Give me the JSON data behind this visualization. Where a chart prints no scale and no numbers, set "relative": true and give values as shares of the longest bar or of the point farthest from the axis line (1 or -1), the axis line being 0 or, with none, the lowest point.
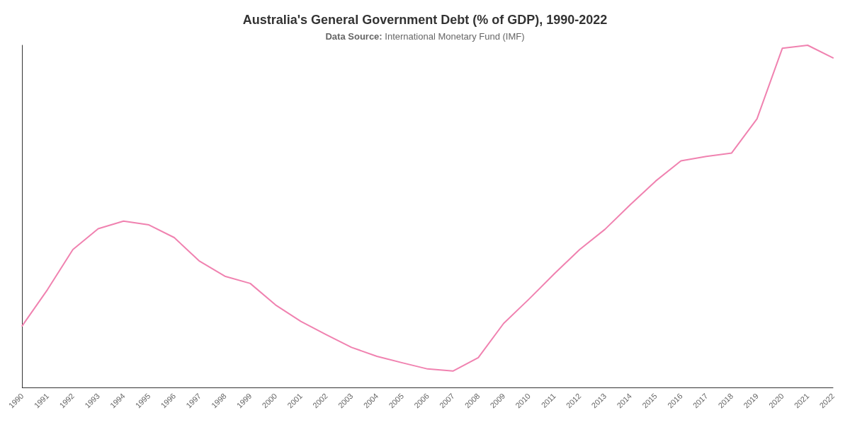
{
  "chart_data": {
    "type": "line",
    "title": "Australia's General Government Debt (% of GDP), 1990-2022",
    "subtitle": "Data Source: International Monetary Fund (IMF)",
    "relative": true,
    "grid": false,
    "marker": "none",
    "line_style": "solid",
    "categories": [
      "1990",
      "1991",
      "1992",
      "1993",
      "1994",
      "1995",
      "1996",
      "1997",
      "1998",
      "1999",
      "2000",
      "2001",
      "2002",
      "2003",
      "2004",
      "2005",
      "2006",
      "2007",
      "2008",
      "2009",
      "2010",
      "2011",
      "2012",
      "2013",
      "2014",
      "2015",
      "2016",
      "2017",
      "2018",
      "2019",
      "2020",
      "2021",
      "2022"
    ],
    "series": [
      {
        "color": "#f082b0",
        "values": [
          0.18,
          0.286,
          0.403,
          0.464,
          0.486,
          0.475,
          0.438,
          0.369,
          0.325,
          0.304,
          0.241,
          0.193,
          0.154,
          0.117,
          0.091,
          0.072,
          0.054,
          0.048,
          0.087,
          0.187,
          0.258,
          0.332,
          0.403,
          0.462,
          0.534,
          0.603,
          0.662,
          0.675,
          0.685,
          0.785,
          0.991,
          1,
          0.963
        ]
      }
    ]
  }
}
